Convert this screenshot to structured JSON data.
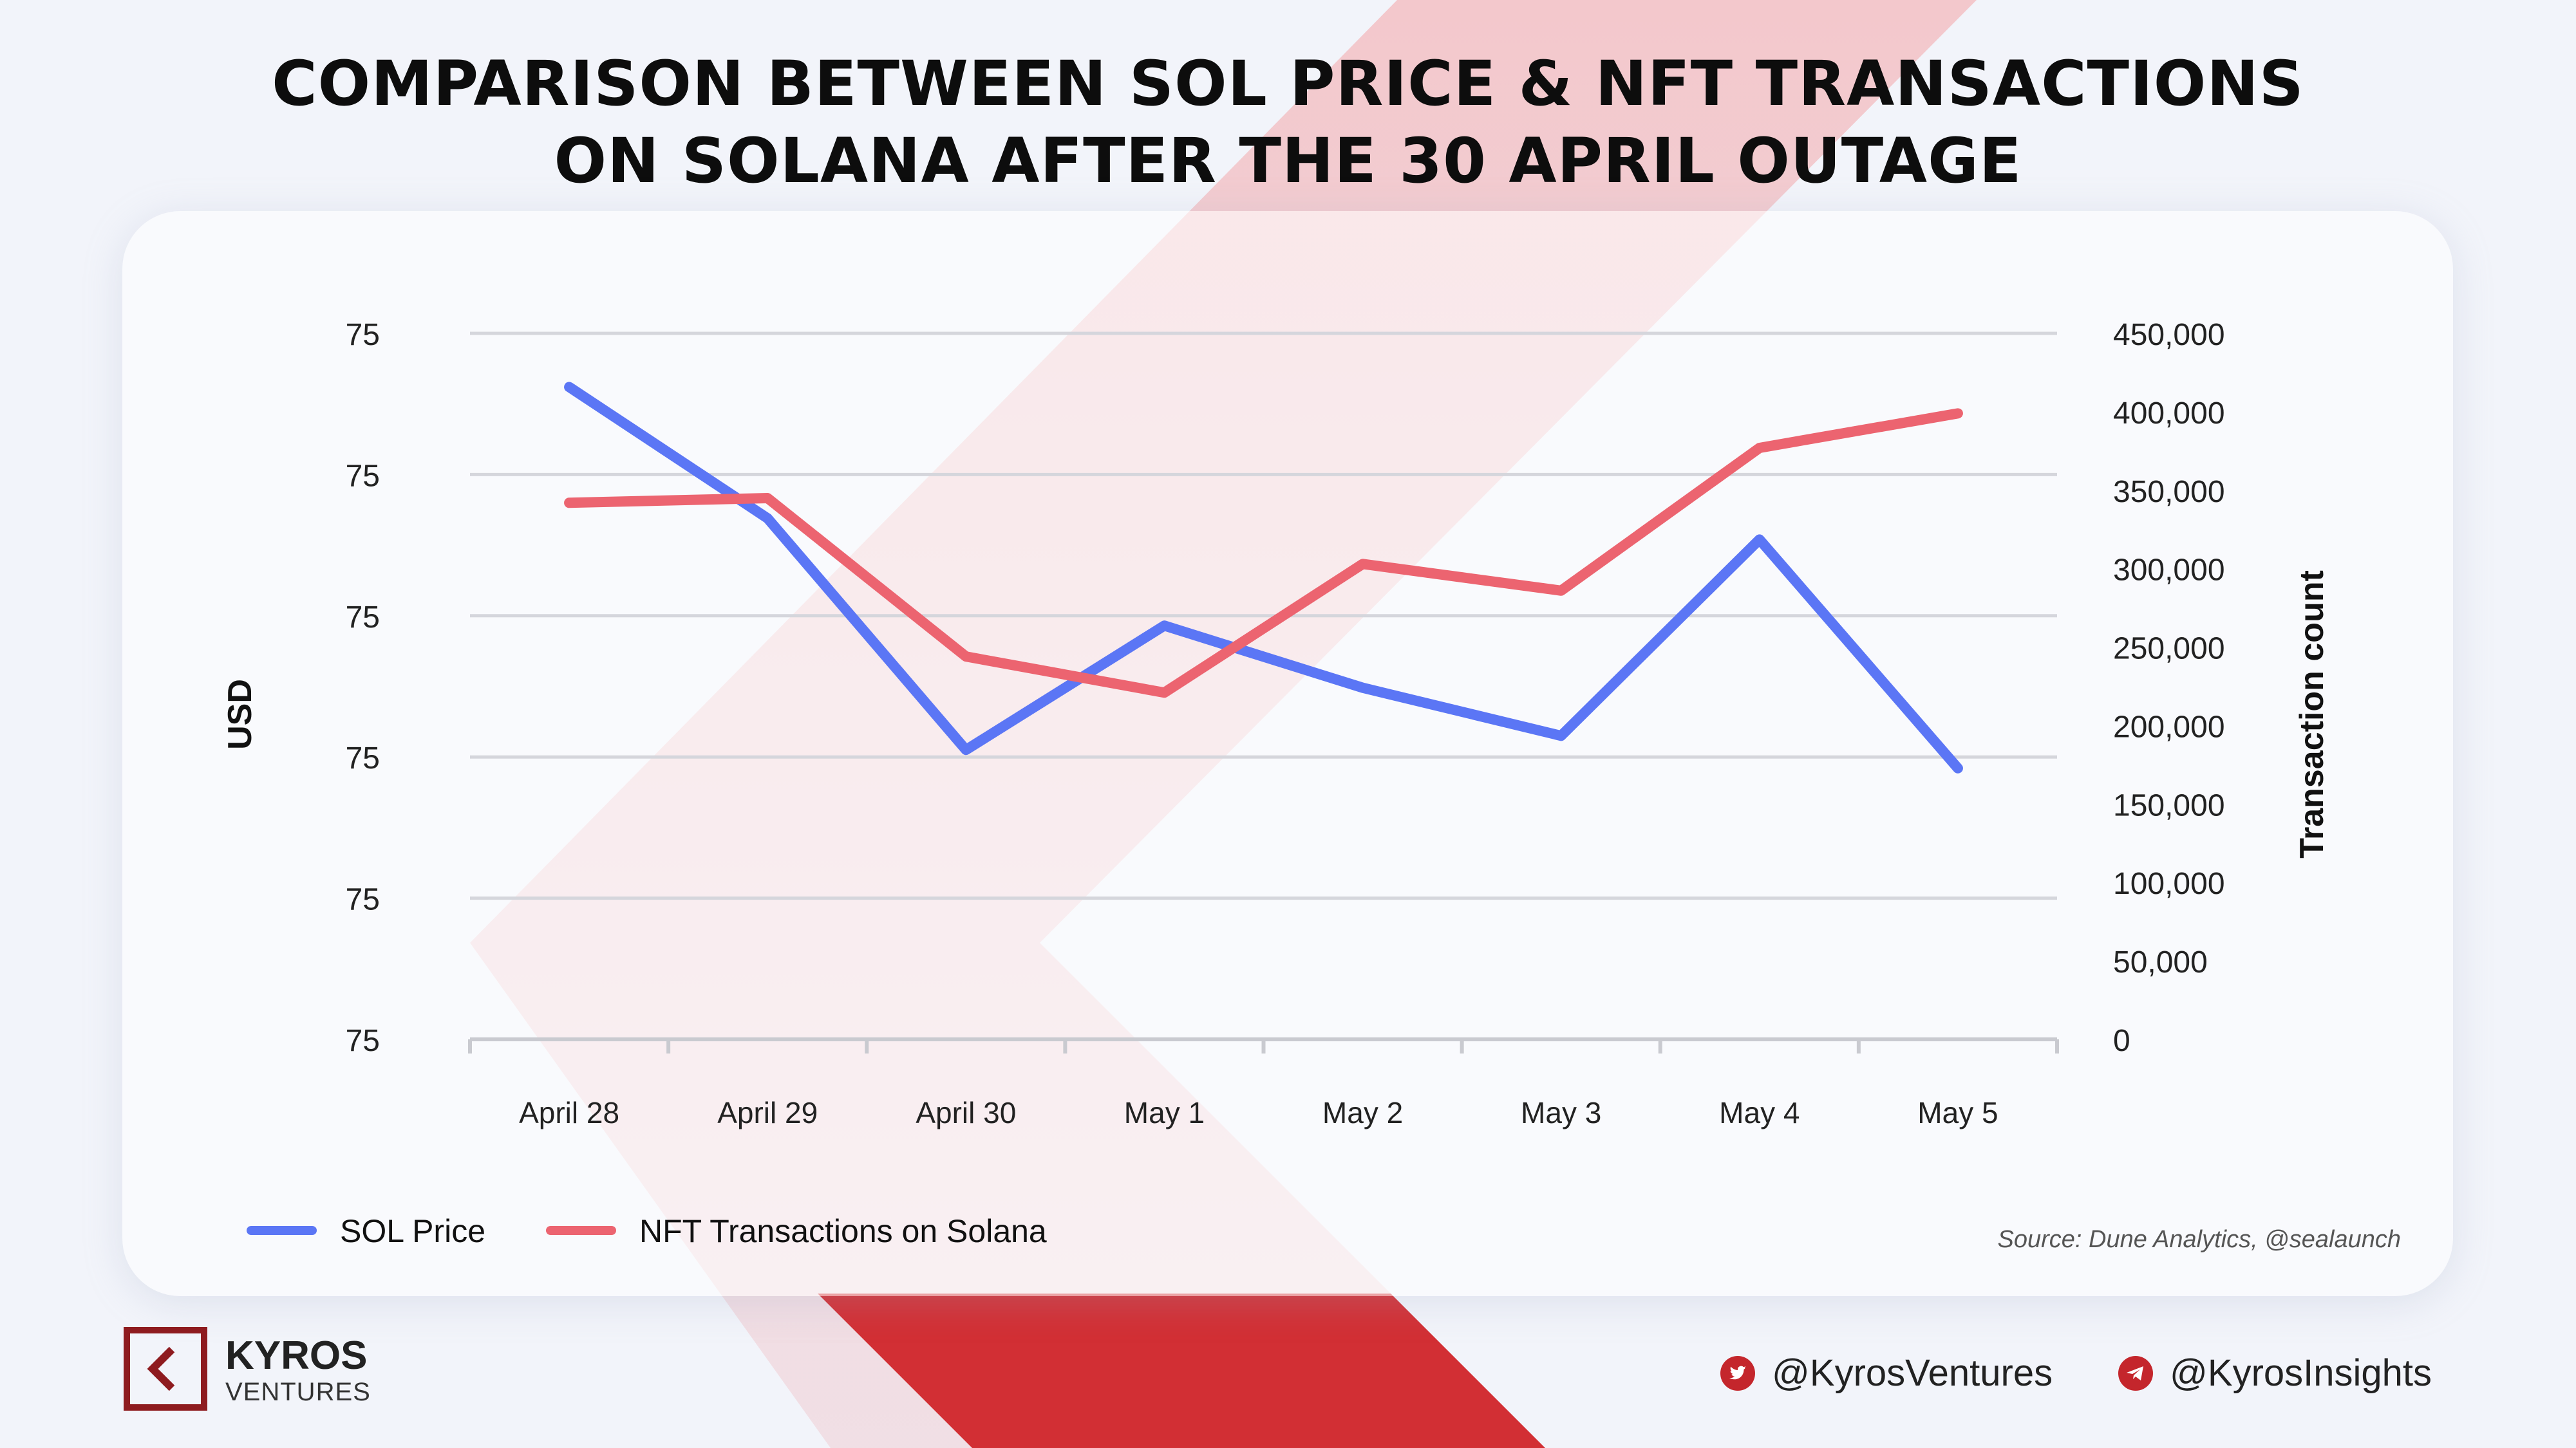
{
  "title": {
    "line1": "COMPARISON BETWEEN SOL PRICE & NFT TRANSACTIONS",
    "line2": "ON SOLANA AFTER THE 30 APRIL OUTAGE"
  },
  "chart_data": {
    "type": "line",
    "title": "COMPARISON BETWEEN SOL PRICE & NFT TRANSACTIONS ON SOLANA AFTER THE 30 APRIL OUTAGE",
    "categories": [
      "April 28",
      "April 29",
      "April 30",
      "May 1",
      "May 2",
      "May 3",
      "May 4",
      "May 5"
    ],
    "ylabel": "USD",
    "y2label": "Transaction count",
    "y_tick_labels": [
      "75",
      "75",
      "75",
      "75",
      "75",
      "75"
    ],
    "y2_ticks": [
      0,
      50000,
      100000,
      150000,
      200000,
      250000,
      300000,
      350000,
      400000,
      450000
    ],
    "y2_tick_labels": [
      "0",
      "50,000",
      "100,000",
      "150,000",
      "200,000",
      "250,000",
      "300,000",
      "350,000",
      "400,000",
      "450,000"
    ],
    "y2lim": [
      0,
      450000
    ],
    "grid": true,
    "legend": "bottom-left",
    "series": [
      {
        "name": "SOL Price",
        "axis": "left",
        "color": "#5b76f5",
        "values": [
          96.2,
          86.9,
          70.5,
          79.3,
          74.9,
          71.5,
          85.4,
          69.2
        ],
        "ylim": [
          50,
          100
        ]
      },
      {
        "name": "NFT Transactions on Solana",
        "axis": "right",
        "color": "#ec6470",
        "values": [
          342000,
          345000,
          244000,
          221000,
          303000,
          286000,
          377000,
          399000
        ]
      }
    ]
  },
  "source": "Source: Dune Analytics, @sealaunch",
  "brand": {
    "name": "KYROS",
    "sub": "VENTURES"
  },
  "social": {
    "twitter": "@KyrosVentures",
    "telegram": "@KyrosInsights"
  },
  "colors": {
    "accent": "#d22f34",
    "dark_red": "#8e1b1f",
    "sol": "#5b76f5",
    "nft": "#ec6470"
  }
}
